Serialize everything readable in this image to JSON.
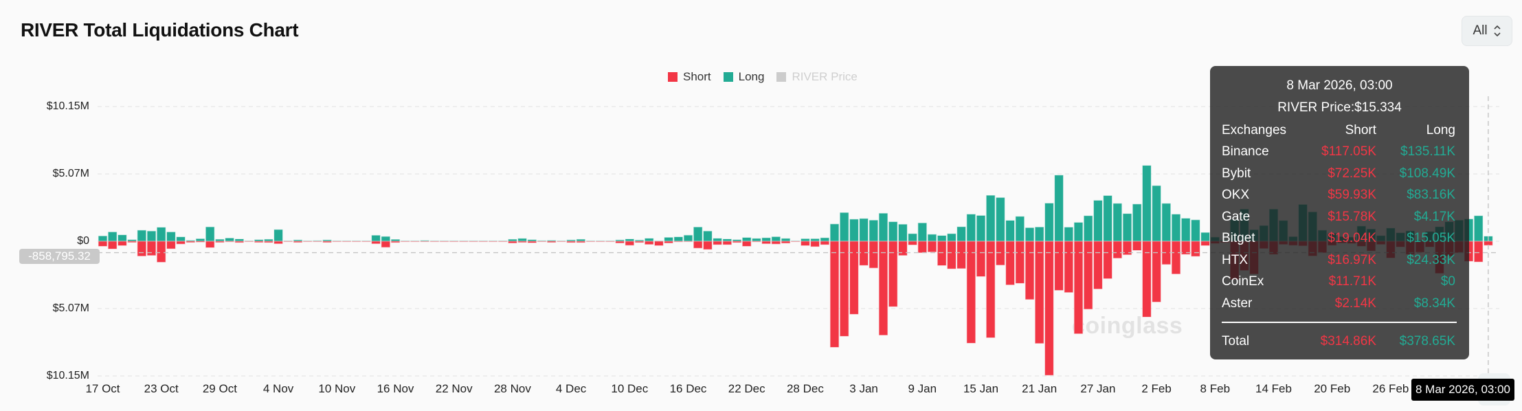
{
  "title": "RIVER Total Liquidations Chart",
  "range_select": {
    "value": "All",
    "icon": "chevron-up-down-icon"
  },
  "watermark": "coinglass",
  "colors": {
    "short": "#f23645",
    "long": "#22ab94",
    "price": "#cccccc",
    "grid": "#e6e6e6"
  },
  "crosshair": {
    "y_value_label": "-858,795.32",
    "y_value": -0.8588,
    "x_label": "8 Mar 2026, 03:00"
  },
  "tooltip": {
    "date": "8 Mar 2026, 03:00",
    "price": "RIVER Price:$15.334",
    "header": {
      "name": "Exchanges",
      "short": "Short",
      "long": "Long"
    },
    "rows": [
      {
        "name": "Binance",
        "short": "$117.05K",
        "long": "$135.11K"
      },
      {
        "name": "Bybit",
        "short": "$72.25K",
        "long": "$108.49K"
      },
      {
        "name": "OKX",
        "short": "$59.93K",
        "long": "$83.16K"
      },
      {
        "name": "Gate",
        "short": "$15.78K",
        "long": "$4.17K"
      },
      {
        "name": "Bitget",
        "short": "$19.04K",
        "long": "$15.05K"
      },
      {
        "name": "HTX",
        "short": "$16.97K",
        "long": "$24.33K"
      },
      {
        "name": "CoinEx",
        "short": "$11.71K",
        "long": "$0"
      },
      {
        "name": "Aster",
        "short": "$2.14K",
        "long": "$8.34K"
      }
    ],
    "total": {
      "name": "Total",
      "short": "$314.86K",
      "long": "$378.65K"
    }
  },
  "chart_data": {
    "type": "bar",
    "title": "RIVER Total Liquidations Chart",
    "legend": [
      {
        "name": "Short",
        "enabled": true
      },
      {
        "name": "Long",
        "enabled": true
      },
      {
        "name": "RIVER Price",
        "enabled": false
      }
    ],
    "legend_position": "top-center",
    "unit": "USD millions",
    "interval": "1 day",
    "x_first": "17 Oct 2025",
    "x_last": "8 Mar 2026",
    "x_ticks": [
      "17 Oct",
      "23 Oct",
      "29 Oct",
      "4 Nov",
      "10 Nov",
      "16 Nov",
      "22 Nov",
      "28 Nov",
      "4 Dec",
      "10 Dec",
      "16 Dec",
      "22 Dec",
      "28 Dec",
      "3 Jan",
      "9 Jan",
      "15 Jan",
      "21 Jan",
      "27 Jan",
      "2 Feb",
      "8 Feb",
      "14 Feb",
      "20 Feb",
      "26 Feb"
    ],
    "y_ticks": [
      {
        "value": 10.15,
        "label": "$10.15M"
      },
      {
        "value": 5.07,
        "label": "$5.07M"
      },
      {
        "value": 0,
        "label": "$0"
      },
      {
        "value": -5.07,
        "label": "$5.07M"
      },
      {
        "value": -10.15,
        "label": "$10.15M"
      }
    ],
    "ylim": [
      -10.15,
      10.15
    ],
    "grid": true,
    "series": [
      {
        "name": "Long",
        "direction": "up",
        "values": [
          0.4,
          0.7,
          0.48,
          0.12,
          0.83,
          0.77,
          1.05,
          0.7,
          0.33,
          0.07,
          0.19,
          1.08,
          0.15,
          0.24,
          0.17,
          0.02,
          0.12,
          0.15,
          0.88,
          0.02,
          0.1,
          0.04,
          0.05,
          0.1,
          0.02,
          0.01,
          0.01,
          0.03,
          0.45,
          0.36,
          0.14,
          0.04,
          0.03,
          0.06,
          0.04,
          0.03,
          0.02,
          0.01,
          0.01,
          0.01,
          0.01,
          0.01,
          0.15,
          0.21,
          0.12,
          0.05,
          0.07,
          0.02,
          0.1,
          0.15,
          0.04,
          0.03,
          0.01,
          0.1,
          0.17,
          0.09,
          0.22,
          0.03,
          0.29,
          0.33,
          0.46,
          1.07,
          0.77,
          0.22,
          0.17,
          0.12,
          0.28,
          0.21,
          0.26,
          0.34,
          0.21,
          0.02,
          0.19,
          0.19,
          0.26,
          1.3,
          2.16,
          1.66,
          1.71,
          1.59,
          2.11,
          1.47,
          1.28,
          0.57,
          1.38,
          0.52,
          0.43,
          0.57,
          1.09,
          2.04,
          1.94,
          3.46,
          3.29,
          1.57,
          1.87,
          1.02,
          1.07,
          2.87,
          4.98,
          1.06,
          1.42,
          1.92,
          3.08,
          3.44,
          2.85,
          2.08,
          2.8,
          5.71,
          4.19,
          2.85,
          2.04,
          1.73,
          1.61,
          0.66,
          0.31,
          0.1,
          1.64,
          2.42,
          0.87,
          1.18,
          2.42,
          1.56,
          0.35,
          2.77,
          2.21,
          0.83,
          0.61,
          0.35,
          0.31,
          1.14,
          0.92,
          0.42,
          0.99,
          0.64,
          0.78,
          0.09,
          0.73,
          1.09,
          1.47,
          1.59,
          1.68,
          1.92,
          0.38
        ]
      },
      {
        "name": "Short",
        "direction": "down",
        "values": [
          0.38,
          0.58,
          0.33,
          0.09,
          1.12,
          1.07,
          1.58,
          0.57,
          0.21,
          0.09,
          0.07,
          0.48,
          0.09,
          0.05,
          0.1,
          0.02,
          0.09,
          0.1,
          0.19,
          0.02,
          0.09,
          0.04,
          0.02,
          0.09,
          0.03,
          0.01,
          0.03,
          0.01,
          0.19,
          0.46,
          0.1,
          0.02,
          0.02,
          0.02,
          0.02,
          0.01,
          0.02,
          0.01,
          0.01,
          0.02,
          0.01,
          0.01,
          0.14,
          0.09,
          0.12,
          0.02,
          0.09,
          0.01,
          0.1,
          0.1,
          0.01,
          0.01,
          0.01,
          0.14,
          0.31,
          0.1,
          0.24,
          0.33,
          0.14,
          0.05,
          0.03,
          0.52,
          0.62,
          0.26,
          0.26,
          0.1,
          0.38,
          0.05,
          0.19,
          0.21,
          0.15,
          0.03,
          0.33,
          0.41,
          0.26,
          7.99,
          7.16,
          5.5,
          1.82,
          2.02,
          7.08,
          4.93,
          1.07,
          0.28,
          0.87,
          0.81,
          1.83,
          2.08,
          2.06,
          7.68,
          2.66,
          7.27,
          1.8,
          3.29,
          3.17,
          4.39,
          7.7,
          10.1,
          3.7,
          3.86,
          6.97,
          5.12,
          3.6,
          2.82,
          1.28,
          1.02,
          0.69,
          5.71,
          4.58,
          1.75,
          2.47,
          0.99,
          1.14,
          0.33,
          0.17,
          0.1,
          2.89,
          2.2,
          2.47,
          0.55,
          0.99,
          0.24,
          0.31,
          0.35,
          1.11,
          0.87,
          0.31,
          0.14,
          0.17,
          0.38,
          0.73,
          0.24,
          1.26,
          0.43,
          0.99,
          0.83,
          0.43,
          2.42,
          1.12,
          0.87,
          1.51,
          1.56,
          0.31
        ]
      }
    ]
  }
}
